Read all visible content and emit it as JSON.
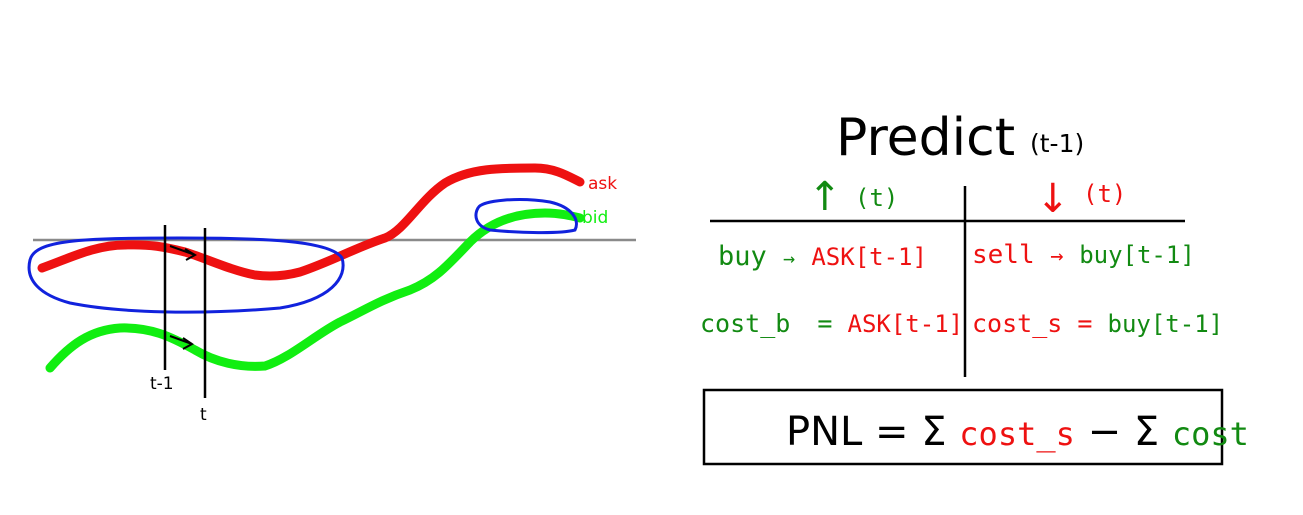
{
  "colors": {
    "ask": "#ee1111",
    "bid": "#11ee11",
    "ellipse": "#1122dd",
    "ink": "#000000",
    "green_text": "#128a12",
    "red_text": "#ee1111",
    "baseline": "#8a8a8a"
  },
  "chart": {
    "ask_label": "ask",
    "bid_label": "bid",
    "t_minus_1_label": "t-1",
    "t_label": "t"
  },
  "formula": {
    "title_main": "Predict",
    "title_sub": "(t-1)",
    "up_arrow": "↑",
    "up_label": "(t)",
    "down_arrow": "↓",
    "down_label": "(t)",
    "row1_left_a": "buy",
    "row1_left_arrow": "→",
    "row1_left_b": "ASK[t-1]",
    "row1_right_a": "sell",
    "row1_right_arrow": "→",
    "row1_right_b": "buy[t-1]",
    "row2_left_a": "cost_b",
    "row2_left_eq": "=",
    "row2_left_b": "ASK[t-1]",
    "row2_right_a": "cost_s",
    "row2_right_eq": "=",
    "row2_right_b": "buy[t-1]"
  },
  "pnl": {
    "prefix": "PNL",
    "equals": "=",
    "sum1": "Σ",
    "term1": "cost_s",
    "minus": "−",
    "sum2": "Σ",
    "term2": "cost"
  }
}
